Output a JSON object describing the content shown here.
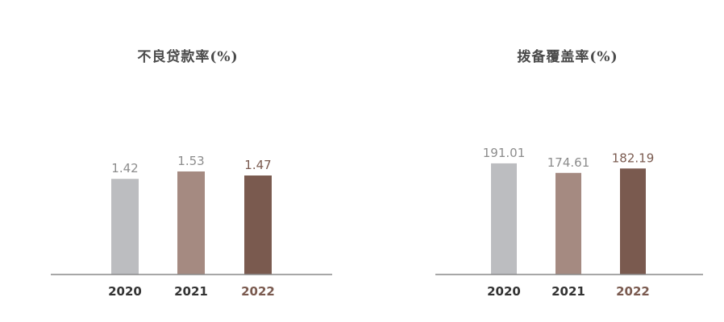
{
  "chart_data": [
    {
      "type": "bar",
      "title": "不良贷款率(%)",
      "categories": [
        "2020",
        "2021",
        "2022"
      ],
      "values": [
        1.42,
        1.53,
        1.47
      ],
      "value_labels": [
        "1.42",
        "1.53",
        "1.47"
      ],
      "ylim": [
        0,
        2.51
      ],
      "grid": false,
      "colors": [
        "#bcbdc0",
        "#a58a81",
        "#7a5a4f"
      ],
      "label_colors": [
        "#8c8c8c",
        "#8c8c8c",
        "#7a5a4f"
      ],
      "tick_colors": [
        "#333333",
        "#333333",
        "#7a5a4f"
      ]
    },
    {
      "type": "bar",
      "title": "拨备覆盖率(%)",
      "categories": [
        "2020",
        "2021",
        "2022"
      ],
      "values": [
        191.01,
        174.61,
        182.19
      ],
      "value_labels": [
        "191.01",
        "174.61",
        "182.19"
      ],
      "ylim": [
        0,
        290.5
      ],
      "grid": false,
      "colors": [
        "#bcbdc0",
        "#a58a81",
        "#7a5a4f"
      ],
      "label_colors": [
        "#8c8c8c",
        "#8c8c8c",
        "#7a5a4f"
      ],
      "tick_colors": [
        "#333333",
        "#333333",
        "#7a5a4f"
      ]
    }
  ]
}
